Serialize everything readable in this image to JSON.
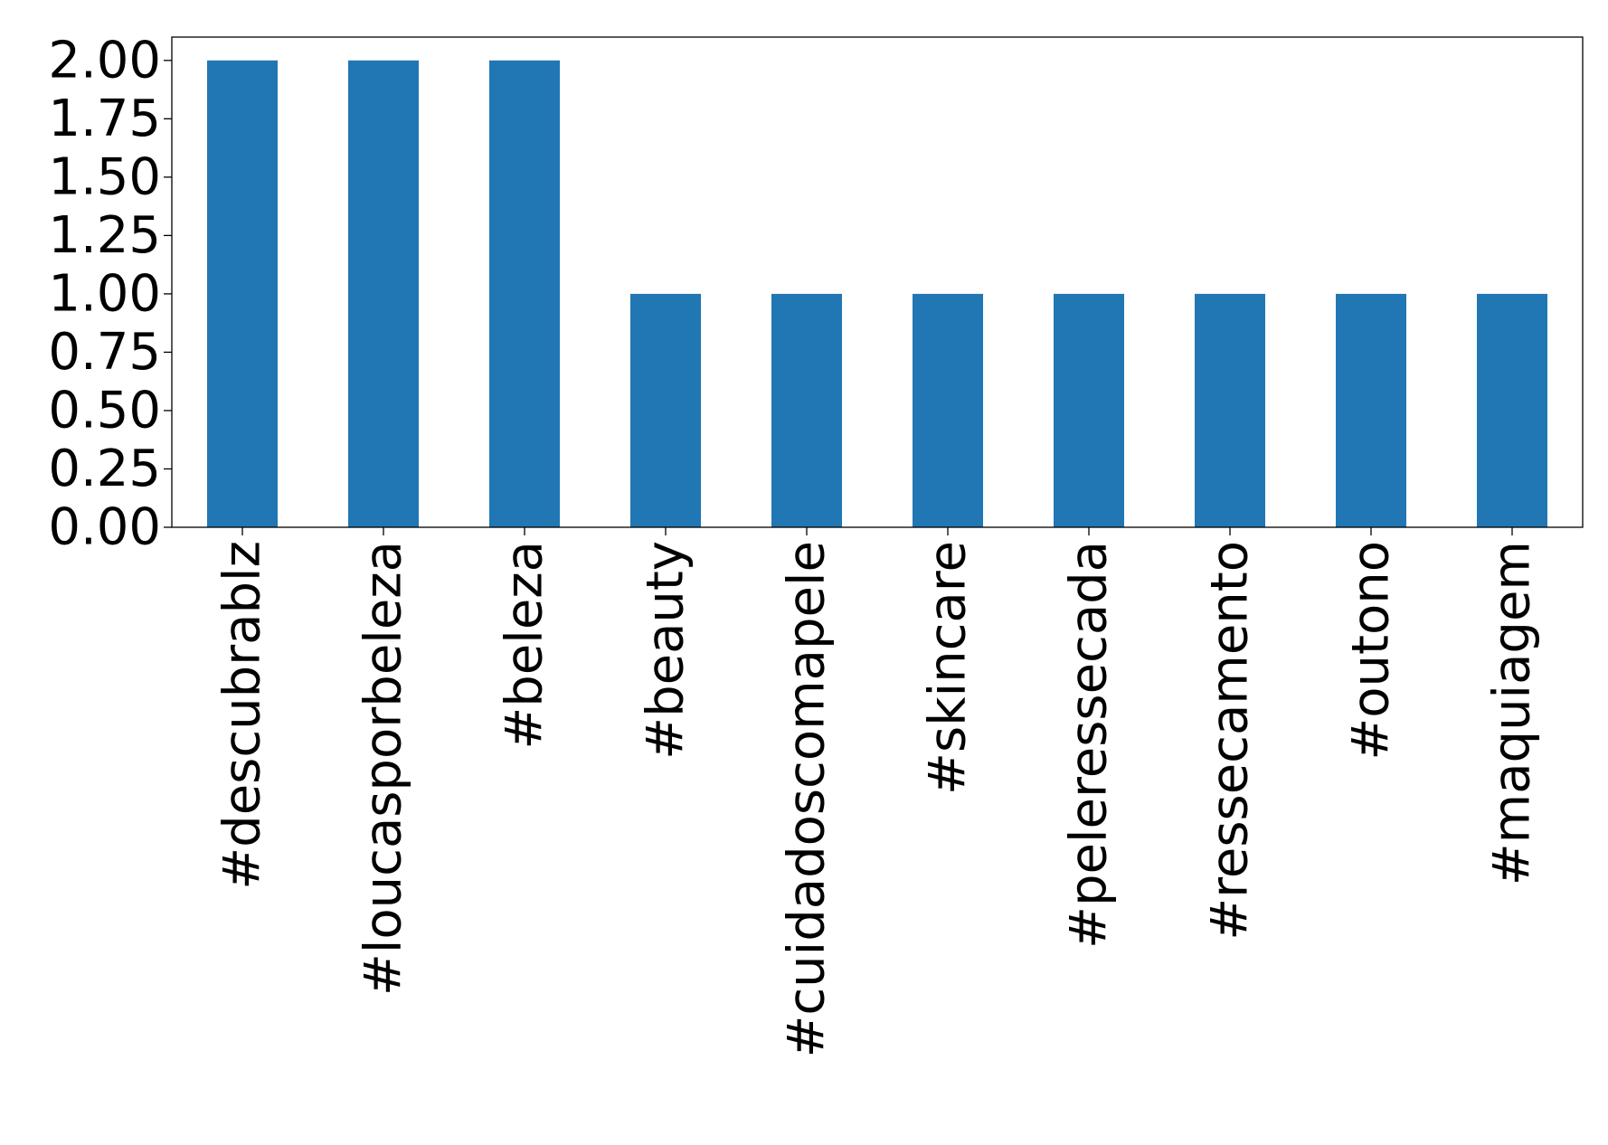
{
  "chart_data": {
    "type": "bar",
    "title": "",
    "xlabel": "",
    "ylabel": "",
    "categories": [
      "#descubrablz",
      "#loucasporbeleza",
      "#beleza",
      "#beauty",
      "#cuidadoscomapele",
      "#skincare",
      "#peleressecada",
      "#ressecamento",
      "#outono",
      "#maquiagem"
    ],
    "values": [
      2,
      2,
      2,
      1,
      1,
      1,
      1,
      1,
      1,
      1
    ],
    "ylim": [
      0,
      2.1
    ],
    "yticks": [
      0,
      0.25,
      0.5,
      0.75,
      1,
      1.25,
      1.5,
      1.75,
      2
    ],
    "ytick_labels": [
      "0.00",
      "0.25",
      "0.50",
      "0.75",
      "1.00",
      "1.25",
      "1.50",
      "1.75",
      "2.00"
    ],
    "grid": false,
    "legend": "none",
    "bar_color": "#2077b4"
  }
}
